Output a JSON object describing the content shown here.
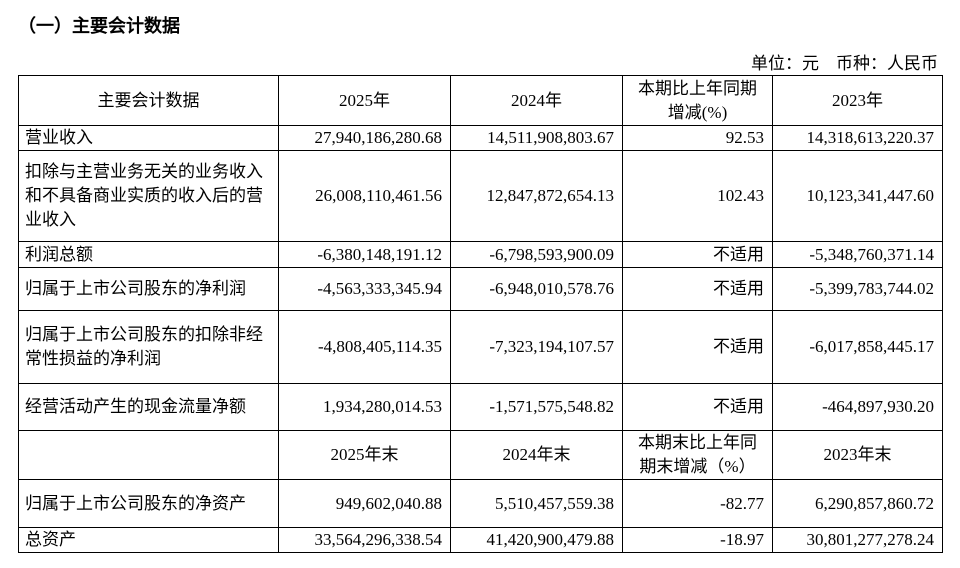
{
  "header": {
    "title": "（一）主要会计数据",
    "unit": "单位：元　币种：人民币"
  },
  "table": {
    "columns": [
      "主要会计数据",
      "2025年",
      "2024年",
      "本期比上年同期增减(%)",
      "2023年"
    ],
    "rows": [
      [
        "营业收入",
        "27,940,186,280.68",
        "14,511,908,803.67",
        "92.53",
        "14,318,613,220.37"
      ],
      [
        "扣除与主营业务无关的业务收入和不具备商业实质的收入后的营业收入",
        "26,008,110,461.56",
        "12,847,872,654.13",
        "102.43",
        "10,123,341,447.60"
      ],
      [
        "利润总额",
        "-6,380,148,191.12",
        "-6,798,593,900.09",
        "不适用",
        "-5,348,760,371.14"
      ],
      [
        "归属于上市公司股东的净利润",
        "-4,563,333,345.94",
        "-6,948,010,578.76",
        "不适用",
        "-5,399,783,744.02"
      ],
      [
        "归属于上市公司股东的扣除非经常性损益的净利润",
        "-4,808,405,114.35",
        "-7,323,194,107.57",
        "不适用",
        "-6,017,858,445.17"
      ],
      [
        "经营活动产生的现金流量净额",
        "1,934,280,014.53",
        "-1,571,575,548.82",
        "不适用",
        "-464,897,930.20"
      ]
    ],
    "period_end_columns": [
      "2025年末",
      "2024年末",
      "本期末比上年同期末增减（%）",
      "2023年末"
    ],
    "period_end_rows": [
      [
        "归属于上市公司股东的净资产",
        "949,602,040.88",
        "5,510,457,559.38",
        "-82.77",
        "6,290,857,860.72"
      ],
      [
        "总资产",
        "33,564,296,338.54",
        "41,420,900,479.88",
        "-18.97",
        "30,801,277,278.24"
      ]
    ]
  }
}
